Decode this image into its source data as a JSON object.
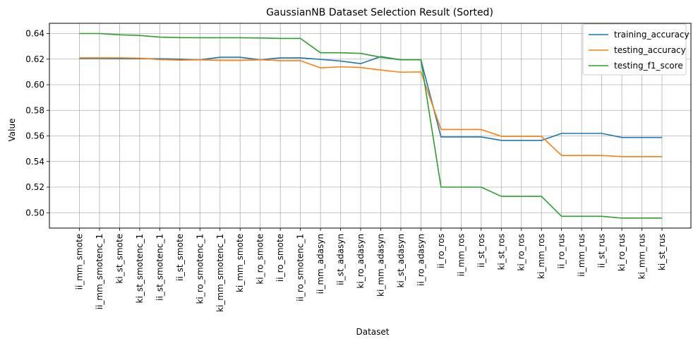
{
  "chart_data": {
    "type": "line",
    "title": "GaussianNB Dataset Selection Result (Sorted)",
    "xlabel": "Dataset",
    "ylabel": "Value",
    "ylim": [
      0.488,
      0.648
    ],
    "yticks": [
      0.5,
      0.52,
      0.54,
      0.56,
      0.58,
      0.6,
      0.62,
      0.64
    ],
    "ytick_labels": [
      "0.50",
      "0.52",
      "0.54",
      "0.56",
      "0.58",
      "0.60",
      "0.62",
      "0.64"
    ],
    "grid": true,
    "legend_position": "top-right",
    "categories": [
      "ii_mm_smote",
      "ii_mm_smotenc_1",
      "ki_st_smote",
      "ki_st_smotenc_1",
      "ii_st_smotenc_1",
      "ii_st_smote",
      "ki_ro_smotenc_1",
      "ki_mm_smotenc_1",
      "ki_mm_smote",
      "ki_ro_smote",
      "ii_ro_smote",
      "ii_ro_smotenc_1",
      "ii_mm_adasyn",
      "ii_st_adasyn",
      "ki_ro_adasyn",
      "ki_mm_adasyn",
      "ki_st_adasyn",
      "ii_ro_adasyn",
      "ii_ro_ros",
      "ii_mm_ros",
      "ii_st_ros",
      "ki_st_ros",
      "ki_ro_ros",
      "ki_mm_ros",
      "ii_ro_rus",
      "ii_mm_rus",
      "ii_st_rus",
      "ki_ro_rus",
      "ki_mm_rus",
      "ki_st_rus"
    ],
    "series": [
      {
        "name": "training_accuracy",
        "color": "#1f77b4",
        "values": [
          0.6205,
          0.6205,
          0.6203,
          0.6203,
          0.6203,
          0.62,
          0.6195,
          0.6215,
          0.6215,
          0.6195,
          0.621,
          0.621,
          0.6198,
          0.6185,
          0.6165,
          0.622,
          0.6195,
          0.6195,
          0.5592,
          0.5592,
          0.5592,
          0.5565,
          0.5565,
          0.5565,
          0.562,
          0.562,
          0.562,
          0.5588,
          0.5588,
          0.5588
        ]
      },
      {
        "name": "testing_accuracy",
        "color": "#ff7f0e",
        "values": [
          0.621,
          0.621,
          0.621,
          0.6207,
          0.6197,
          0.6192,
          0.6195,
          0.619,
          0.619,
          0.6195,
          0.6188,
          0.6188,
          0.6132,
          0.614,
          0.6135,
          0.6115,
          0.6098,
          0.61,
          0.565,
          0.565,
          0.565,
          0.5597,
          0.5597,
          0.5597,
          0.5447,
          0.5447,
          0.5447,
          0.5438,
          0.5438,
          0.5438
        ]
      },
      {
        "name": "testing_f1_score",
        "color": "#2ca02c",
        "values": [
          0.64,
          0.64,
          0.639,
          0.6385,
          0.6372,
          0.6368,
          0.6367,
          0.6367,
          0.6367,
          0.6365,
          0.6362,
          0.6362,
          0.625,
          0.625,
          0.6245,
          0.6215,
          0.6195,
          0.6195,
          0.52,
          0.52,
          0.52,
          0.5128,
          0.5128,
          0.5128,
          0.4972,
          0.4972,
          0.4972,
          0.4958,
          0.4958,
          0.4958
        ]
      }
    ]
  }
}
